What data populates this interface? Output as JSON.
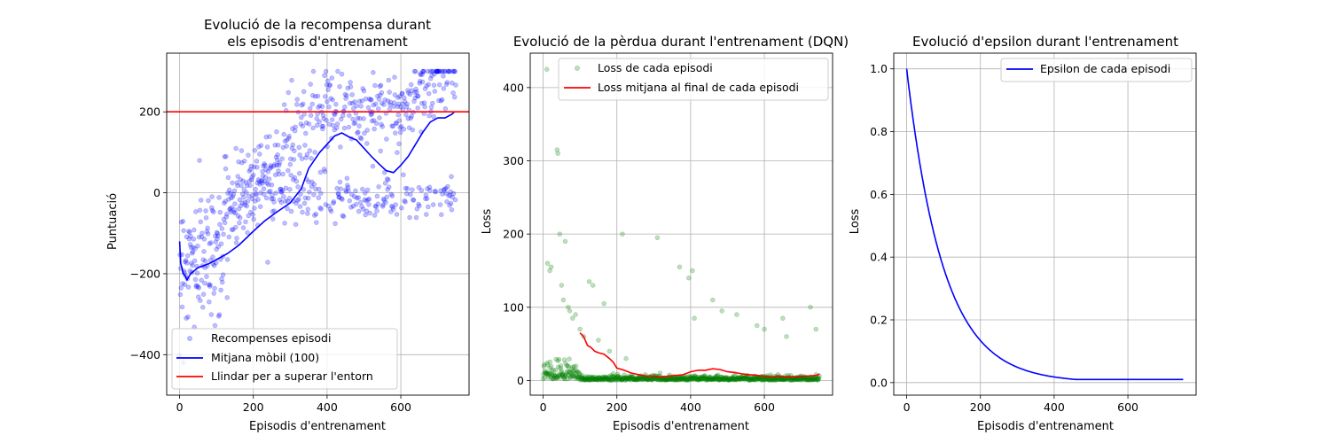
{
  "figure": {
    "background": "#ffffff"
  },
  "chart_data": [
    {
      "type": "scatter",
      "title": "Evolució de la recompensa durant\nels episodis d'entrenament",
      "xlabel": "Episodis d'entrenament",
      "ylabel": "Puntuació",
      "xlim": [
        -35,
        785
      ],
      "ylim": [
        -500,
        345
      ],
      "xticks": [
        0,
        200,
        400,
        600
      ],
      "yticks": [
        -400,
        -200,
        0,
        200
      ],
      "grid": true,
      "legend_position": "lower-left",
      "series": [
        {
          "name": "Recompenses episodi",
          "kind": "scatter",
          "color": "#0000ff",
          "alpha": 0.25,
          "n_episodes": 750,
          "description_values": "episode rewards, rising from about -250 (range -400..0) at start to about 250 (range 200..300) near the end, with a second cluster around -20",
          "trend_anchors": {
            "x": [
              0,
              50,
              100,
              150,
              200,
              250,
              300,
              350,
              400,
              450,
              500,
              550,
              600,
              650,
              700,
              750
            ],
            "y": [
              -180,
              -160,
              -120,
              -80,
              -40,
              10,
              60,
              110,
              140,
              150,
              110,
              60,
              120,
              200,
              240,
              250
            ]
          }
        },
        {
          "name": "Mitjana mòbil (100)",
          "kind": "line",
          "color": "#0000ff",
          "x": [
            0,
            3,
            6,
            10,
            15,
            20,
            30,
            50,
            80,
            100,
            130,
            160,
            200,
            230,
            260,
            300,
            330,
            350,
            380,
            400,
            420,
            440,
            460,
            480,
            500,
            520,
            540,
            560,
            580,
            600,
            620,
            640,
            660,
            680,
            700,
            720,
            740,
            745
          ],
          "y": [
            -120,
            -175,
            -185,
            -200,
            -205,
            -215,
            -200,
            -185,
            -175,
            -165,
            -150,
            -130,
            -95,
            -70,
            -50,
            -25,
            10,
            60,
            100,
            120,
            140,
            148,
            138,
            130,
            110,
            90,
            72,
            55,
            50,
            68,
            90,
            120,
            150,
            175,
            185,
            185,
            195,
            200
          ]
        },
        {
          "name": "Llindar per a superar l'entorn",
          "kind": "hline",
          "color": "#ff0000",
          "y": 200
        }
      ]
    },
    {
      "type": "scatter",
      "title": "Evolució de la pèrdua durant l'entrenament (DQN)",
      "xlabel": "Episodis d'entrenament",
      "ylabel": "Loss",
      "xlim": [
        -35,
        785
      ],
      "ylim": [
        -20,
        447
      ],
      "xticks": [
        0,
        200,
        400,
        600
      ],
      "yticks": [
        0,
        100,
        200,
        300,
        400
      ],
      "grid": true,
      "legend_position": "upper-left",
      "series": [
        {
          "name": "Loss de cada episodi",
          "kind": "scatter",
          "color": "#008000",
          "alpha": 0.25,
          "outliers": {
            "x": [
              10,
              12,
              18,
              22,
              38,
              40,
              45,
              50,
              55,
              60,
              68,
              72,
              80,
              88,
              100,
              110,
              125,
              135,
              150,
              165,
              180,
              215,
              225,
              310,
              370,
              395,
              405,
              410,
              460,
              485,
              525,
              580,
              600,
              650,
              660,
              725,
              740
            ],
            "y": [
              425,
              160,
              150,
              155,
              315,
              310,
              200,
              130,
              110,
              190,
              100,
              95,
              85,
              90,
              70,
              60,
              135,
              130,
              55,
              105,
              40,
              200,
              30,
              195,
              155,
              140,
              150,
              85,
              110,
              95,
              90,
              75,
              70,
              85,
              60,
              100,
              70
            ]
          }
        },
        {
          "name": "Loss mitjana al final de cada episodi",
          "kind": "line",
          "color": "#ff0000",
          "x": [
            100,
            110,
            120,
            130,
            140,
            150,
            165,
            180,
            190,
            200,
            220,
            240,
            260,
            280,
            300,
            320,
            340,
            360,
            380,
            400,
            420,
            440,
            460,
            480,
            500,
            520,
            540,
            560,
            580,
            600,
            620,
            640,
            660,
            680,
            700,
            720,
            740,
            750
          ],
          "y": [
            65,
            60,
            48,
            45,
            40,
            38,
            36,
            30,
            25,
            17,
            14,
            10,
            8,
            6,
            6,
            5,
            6,
            7,
            8,
            12,
            14,
            14,
            16,
            15,
            12,
            11,
            9,
            8,
            7,
            6,
            5,
            6,
            5,
            5,
            6,
            6,
            7,
            9
          ]
        }
      ]
    },
    {
      "type": "line",
      "title": "Evolució d'epsilon durant l'entrenament",
      "xlabel": "Episodis d'entrenament",
      "ylabel": "Loss",
      "xlim": [
        -35,
        785
      ],
      "ylim": [
        -0.04,
        1.05
      ],
      "xticks": [
        0,
        200,
        400,
        600
      ],
      "yticks": [
        0.0,
        0.2,
        0.4,
        0.6,
        0.8,
        1.0
      ],
      "grid": true,
      "legend_position": "upper-right",
      "series": [
        {
          "name": "Epsilon de cada episodi",
          "kind": "line",
          "color": "#0000ff",
          "decay": 0.99,
          "min": 0.01,
          "x": [
            0,
            750
          ]
        }
      ]
    }
  ]
}
